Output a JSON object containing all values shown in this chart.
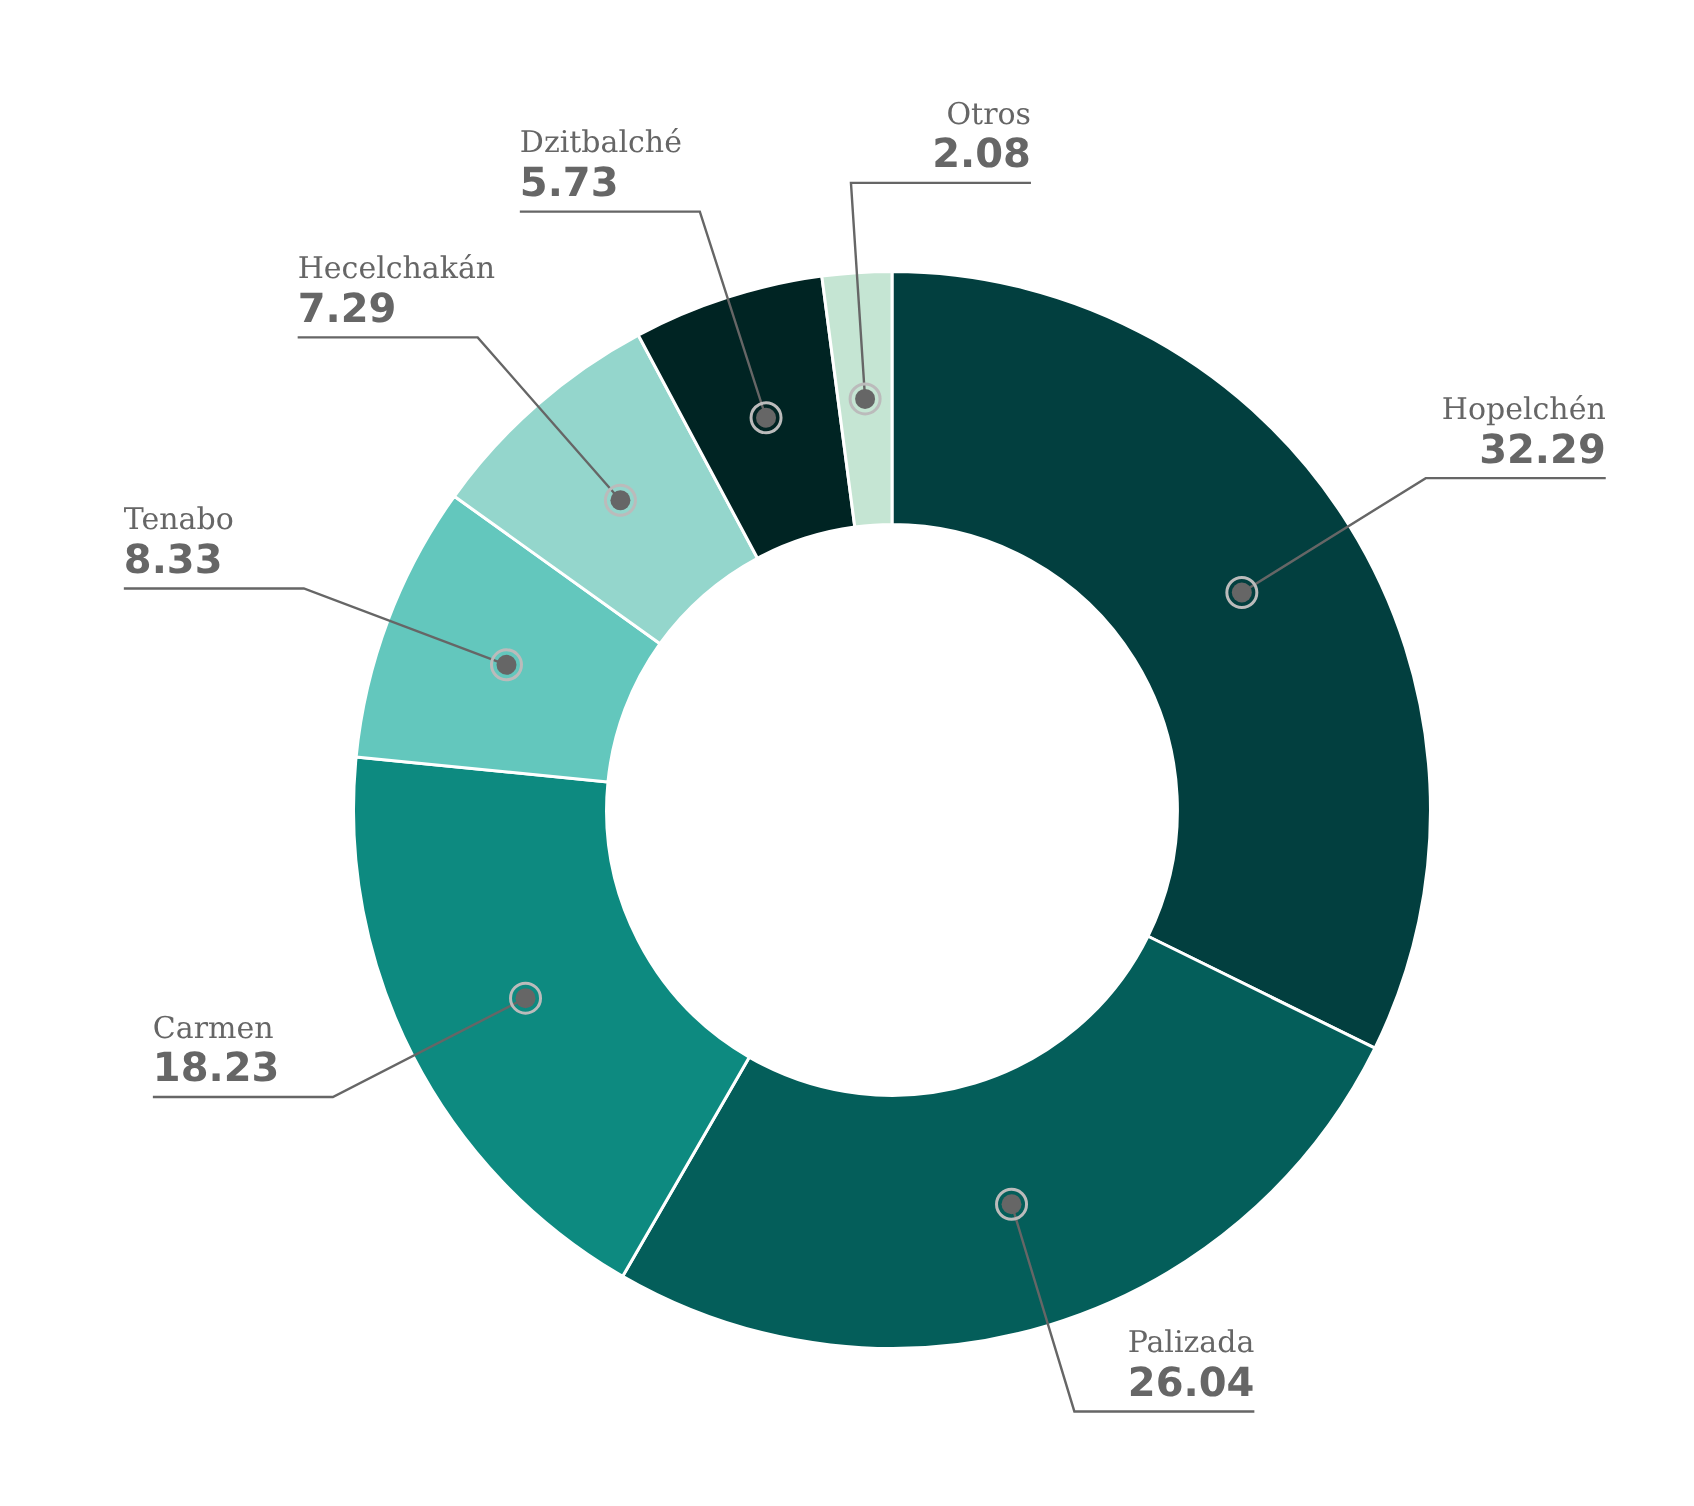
{
  "chart_data": {
    "type": "donut",
    "categories": [
      "Hopelchén",
      "Palizada",
      "Carmen",
      "Tenabo",
      "Hecelchakán",
      "Dzitbalché",
      "Otros"
    ],
    "values": [
      32.29,
      26.04,
      18.23,
      8.33,
      7.29,
      5.73,
      2.08
    ],
    "colors": [
      "#023f3f",
      "#045e5a",
      "#0d8a80",
      "#63c7bd",
      "#94d6cc",
      "#002423",
      "#c5e5d3"
    ],
    "data_labels": true,
    "legend": false
  }
}
